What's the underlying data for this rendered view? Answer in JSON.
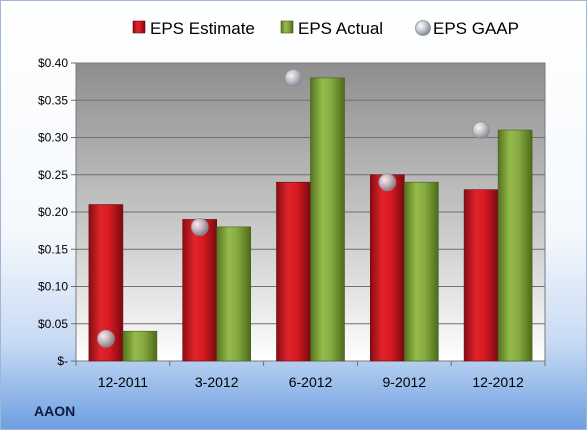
{
  "chart_data": {
    "type": "bar",
    "categories": [
      "12-2011",
      "3-2012",
      "6-2012",
      "9-2012",
      "12-2012"
    ],
    "series": [
      {
        "name": "EPS Estimate",
        "kind": "bar",
        "color": "#c8131c",
        "values": [
          0.21,
          0.19,
          0.24,
          0.25,
          0.23
        ]
      },
      {
        "name": "EPS Actual",
        "kind": "bar",
        "color": "#7fa33a",
        "values": [
          0.04,
          0.18,
          0.38,
          0.24,
          0.31
        ]
      },
      {
        "name": "EPS GAAP",
        "kind": "marker",
        "color": "#b8bcc4",
        "values": [
          0.03,
          0.18,
          0.38,
          0.24,
          0.31
        ]
      }
    ],
    "yticks": [
      "$-",
      "$0.05",
      "$0.10",
      "$0.15",
      "$0.20",
      "$0.25",
      "$0.30",
      "$0.35",
      "$0.40"
    ],
    "ylim": [
      0,
      0.4
    ],
    "grid": true,
    "legend_position": "top"
  },
  "ticker": "AAON"
}
